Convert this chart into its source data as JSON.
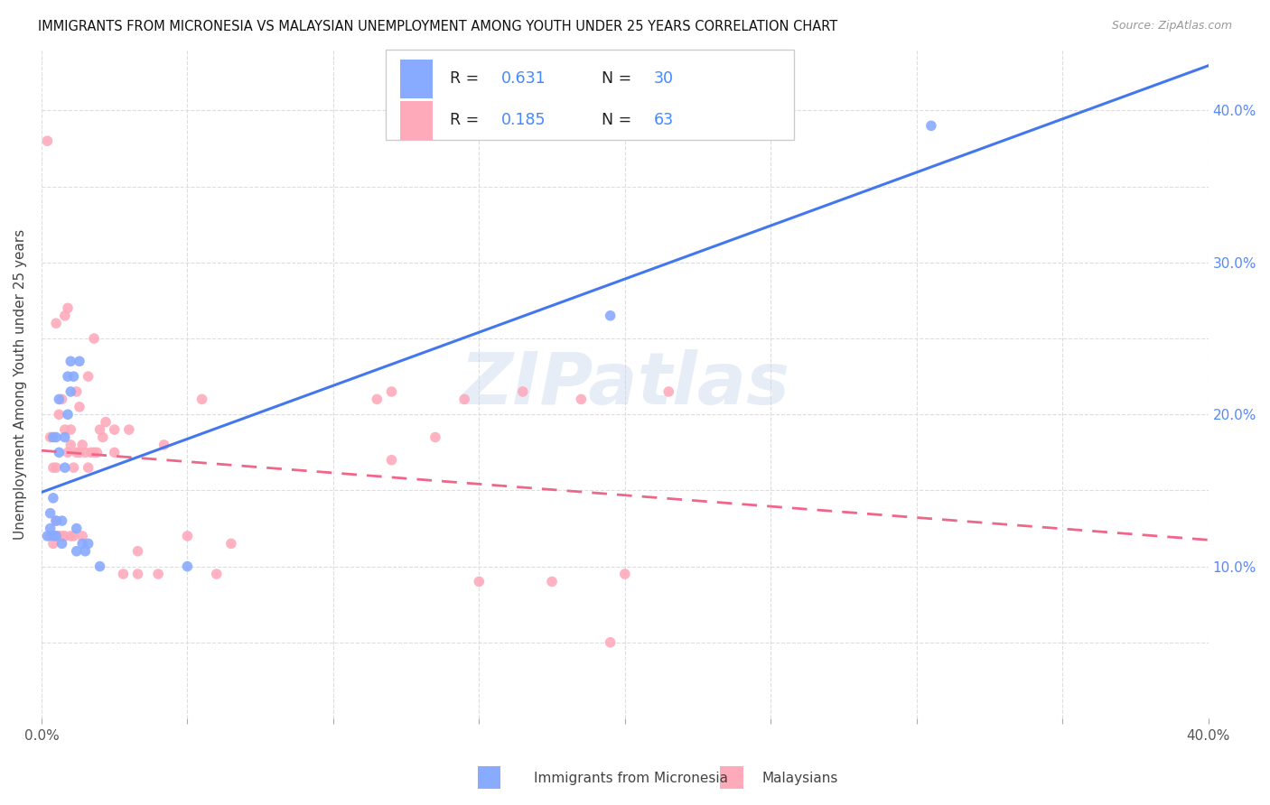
{
  "title": "IMMIGRANTS FROM MICRONESIA VS MALAYSIAN UNEMPLOYMENT AMONG YOUTH UNDER 25 YEARS CORRELATION CHART",
  "source": "Source: ZipAtlas.com",
  "ylabel": "Unemployment Among Youth under 25 years",
  "xlim": [
    0.0,
    0.4
  ],
  "ylim": [
    0.0,
    0.44
  ],
  "blue_color": "#88aaff",
  "blue_line_color": "#4477ee",
  "pink_color": "#ffaabb",
  "pink_line_color": "#ee6688",
  "watermark_text": "ZIPatlas",
  "series1_label": "Immigrants from Micronesia",
  "series2_label": "Malaysians",
  "legend_R1": "0.631",
  "legend_N1": "30",
  "legend_R2": "0.185",
  "legend_N2": "63",
  "blue_scatter_x": [
    0.002,
    0.003,
    0.003,
    0.004,
    0.004,
    0.004,
    0.005,
    0.005,
    0.005,
    0.006,
    0.006,
    0.007,
    0.007,
    0.008,
    0.008,
    0.009,
    0.009,
    0.01,
    0.01,
    0.011,
    0.012,
    0.012,
    0.013,
    0.014,
    0.015,
    0.016,
    0.02,
    0.05,
    0.195,
    0.305
  ],
  "blue_scatter_y": [
    0.12,
    0.125,
    0.135,
    0.12,
    0.145,
    0.185,
    0.12,
    0.13,
    0.185,
    0.175,
    0.21,
    0.115,
    0.13,
    0.165,
    0.185,
    0.2,
    0.225,
    0.215,
    0.235,
    0.225,
    0.11,
    0.125,
    0.235,
    0.115,
    0.11,
    0.115,
    0.1,
    0.1,
    0.265,
    0.39
  ],
  "pink_scatter_x": [
    0.002,
    0.003,
    0.003,
    0.004,
    0.004,
    0.005,
    0.005,
    0.005,
    0.005,
    0.006,
    0.006,
    0.007,
    0.007,
    0.008,
    0.008,
    0.008,
    0.009,
    0.009,
    0.01,
    0.01,
    0.01,
    0.011,
    0.011,
    0.012,
    0.012,
    0.013,
    0.013,
    0.014,
    0.014,
    0.015,
    0.016,
    0.016,
    0.017,
    0.018,
    0.018,
    0.019,
    0.02,
    0.021,
    0.022,
    0.025,
    0.025,
    0.028,
    0.03,
    0.033,
    0.033,
    0.04,
    0.042,
    0.05,
    0.055,
    0.06,
    0.065,
    0.115,
    0.12,
    0.135,
    0.145,
    0.165,
    0.185,
    0.195,
    0.215,
    0.12,
    0.15,
    0.175,
    0.2
  ],
  "pink_scatter_y": [
    0.38,
    0.12,
    0.185,
    0.115,
    0.165,
    0.12,
    0.13,
    0.165,
    0.26,
    0.12,
    0.2,
    0.12,
    0.21,
    0.12,
    0.19,
    0.265,
    0.175,
    0.27,
    0.12,
    0.19,
    0.18,
    0.12,
    0.165,
    0.175,
    0.215,
    0.175,
    0.205,
    0.18,
    0.12,
    0.175,
    0.165,
    0.225,
    0.175,
    0.175,
    0.25,
    0.175,
    0.19,
    0.185,
    0.195,
    0.175,
    0.19,
    0.095,
    0.19,
    0.095,
    0.11,
    0.095,
    0.18,
    0.12,
    0.21,
    0.095,
    0.115,
    0.21,
    0.215,
    0.185,
    0.21,
    0.215,
    0.21,
    0.05,
    0.215,
    0.17,
    0.09,
    0.09,
    0.095
  ]
}
